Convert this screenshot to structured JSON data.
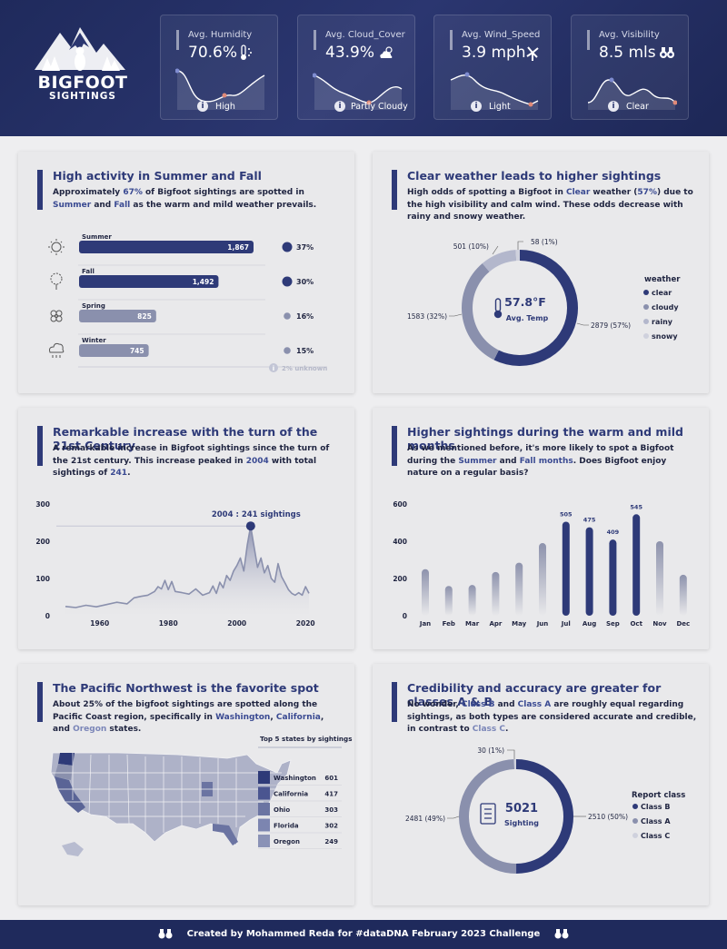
{
  "logo": {
    "line1": "BIGFOOT",
    "line2": "SIGHTINGS"
  },
  "kpis": [
    {
      "title": "Avg. Humidity",
      "value": "70.6%",
      "label": "High",
      "icon": "thermometer-icon"
    },
    {
      "title": "Avg. Cloud_Cover",
      "value": "43.9%",
      "label": "Partly Cloudy",
      "icon": "cloud-sun-icon"
    },
    {
      "title": "Avg. Wind_Speed",
      "value": "3.9 mph",
      "label": "Light",
      "icon": "windmill-icon"
    },
    {
      "title": "Avg. Visibility",
      "value": "8.5 mls",
      "label": "Clear",
      "icon": "binoculars-icon"
    }
  ],
  "colors": {
    "navy": "#2e3a78",
    "mid": "#8a90ad",
    "light": "#b3b7cc",
    "lighter": "#cfd1dd"
  },
  "seasons": {
    "title": "High activity in Summer and Fall",
    "desc_a": "Approximately ",
    "desc_pct": "67%",
    "desc_b": " of Bigfoot sightings are spotted in ",
    "desc_s1": "Summer",
    "desc_and": " and ",
    "desc_s2": "Fall",
    "desc_c": " as the warm and mild weather prevails.",
    "unknown_note": "2% unknown"
  },
  "weather": {
    "title": "Clear weather leads to higher sightings",
    "desc_a": "High odds of spotting a Bigfoot in ",
    "desc_hl": "Clear",
    "desc_b": " weather (",
    "desc_pct": "57%",
    "desc_c": ") due to the high visibility and calm wind. These odds decrease with rainy and snowy weather.",
    "center_value": "57.8°F",
    "center_label": "Avg. Temp",
    "legend_title": "weather"
  },
  "years": {
    "title": "Remarkable increase with the turn of the 21st Century",
    "desc_a": "A remarkable increase in Bigfoot sightings since the turn of the 21st century. This increase peaked in ",
    "desc_year": "2004",
    "desc_b": " with total sightings of ",
    "desc_val": "241",
    "desc_c": ".",
    "peak_label": "2004 : 241 sightings"
  },
  "months": {
    "title": "Higher sightings during the warm and mild months",
    "desc_a": "As we mentioned before, it's more likely to spot a Bigfoot during the ",
    "desc_s1": "Summer",
    "desc_and": " and ",
    "desc_s2": "Fall months",
    "desc_b": ". Does Bigfoot enjoy nature on a regular basis?"
  },
  "states": {
    "title": "The Pacific Northwest is the favorite spot",
    "desc_a": "About 25% of the bigfoot sightings are spotted along the Pacific Coast region, specifically in ",
    "desc_s1": "Washington",
    "desc_c1": ", ",
    "desc_s2": "California",
    "desc_c2": ", and ",
    "desc_s3": "Oregon",
    "desc_b": " states.",
    "table_title": "Top 5 states by sightings"
  },
  "classes": {
    "title": "Credibility and accuracy are greater for classes A & B",
    "desc_a": "No wonder, ",
    "desc_b1": "Class B",
    "desc_and": " and ",
    "desc_a1": "Class A",
    "desc_b": " are roughly equal regarding sightings, as both types are considered accurate and credible, in contrast to ",
    "desc_c1": "Class C",
    "desc_c": ".",
    "center_value": "5021",
    "center_label": "Sighting",
    "legend_title": "Report class"
  },
  "footer": {
    "text": "Created by Mohammed Reda for #dataDNA February 2023 Challenge"
  },
  "chart_data": [
    {
      "id": "season_bar",
      "type": "bar",
      "categories": [
        "Summer",
        "Fall",
        "Spring",
        "Winter"
      ],
      "values": [
        1867,
        1492,
        825,
        745
      ],
      "value_labels": [
        "1,867",
        "1,492",
        "825",
        "745"
      ],
      "percent_labels": [
        "37%",
        "30%",
        "16%",
        "15%"
      ]
    },
    {
      "id": "weather_donut",
      "type": "pie",
      "categories": [
        "clear",
        "cloudy",
        "rainy",
        "snowy"
      ],
      "values": [
        2879,
        1583,
        501,
        58
      ],
      "labels": [
        "2879 (57%)",
        "1583 (32%)",
        "501 (10%)",
        "58 (1%)"
      ]
    },
    {
      "id": "year_line",
      "type": "area",
      "x": [
        1950,
        1953,
        1956,
        1959,
        1962,
        1965,
        1968,
        1970,
        1972,
        1974,
        1976,
        1977,
        1978,
        1979,
        1980,
        1981,
        1982,
        1984,
        1986,
        1988,
        1990,
        1992,
        1993,
        1994,
        1995,
        1996,
        1997,
        1998,
        1999,
        2000,
        2001,
        2002,
        2003,
        2004,
        2005,
        2006,
        2007,
        2008,
        2009,
        2010,
        2011,
        2012,
        2013,
        2014,
        2015,
        2016,
        2017,
        2018,
        2019,
        2020,
        2021
      ],
      "y": [
        25,
        22,
        28,
        24,
        30,
        36,
        32,
        48,
        52,
        55,
        65,
        78,
        72,
        95,
        70,
        92,
        65,
        62,
        58,
        72,
        55,
        62,
        80,
        60,
        90,
        75,
        108,
        95,
        120,
        135,
        155,
        120,
        190,
        241,
        185,
        130,
        155,
        115,
        135,
        100,
        90,
        140,
        105,
        88,
        70,
        60,
        55,
        62,
        55,
        78,
        60
      ],
      "xticks": [
        1960,
        1980,
        2000,
        2020
      ],
      "yticks": [
        0,
        100,
        200,
        300
      ],
      "ylim": [
        0,
        300
      ],
      "annotation": "2004 : 241 sightings"
    },
    {
      "id": "month_bar",
      "type": "bar",
      "categories": [
        "Jan",
        "Feb",
        "Mar",
        "Apr",
        "May",
        "Jun",
        "Jul",
        "Aug",
        "Sep",
        "Oct",
        "Nov",
        "Dec"
      ],
      "values": [
        250,
        160,
        165,
        235,
        285,
        390,
        505,
        475,
        409,
        545,
        400,
        220
      ],
      "value_labels": [
        "",
        "",
        "",
        "",
        "",
        "",
        "505",
        "475",
        "409",
        "545",
        "",
        ""
      ],
      "yticks": [
        0,
        200,
        400,
        600
      ],
      "ylim": [
        0,
        600
      ]
    },
    {
      "id": "top_states",
      "type": "table",
      "categories": [
        "Washington",
        "California",
        "Ohio",
        "Florida",
        "Oregon"
      ],
      "values": [
        601,
        417,
        303,
        302,
        249
      ]
    },
    {
      "id": "class_donut",
      "type": "pie",
      "categories": [
        "Class B",
        "Class A",
        "Class C"
      ],
      "values": [
        2510,
        2481,
        30
      ],
      "labels": [
        "2510 (50%)",
        "2481 (49%)",
        "30 (1%)"
      ]
    }
  ]
}
